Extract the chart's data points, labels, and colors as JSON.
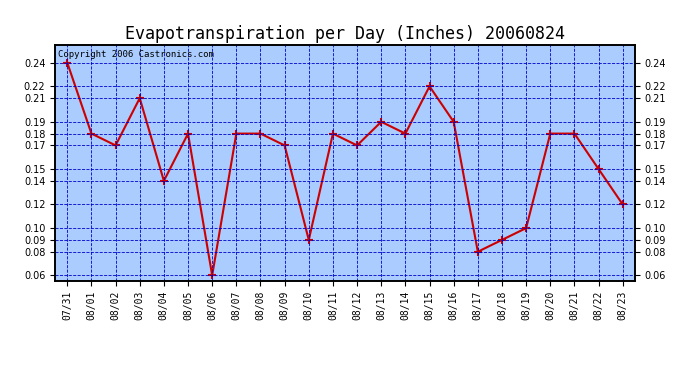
{
  "title": "Evapotranspiration per Day (Inches) 20060824",
  "copyright": "Copyright 2006 Castronics.com",
  "x_labels": [
    "07/31",
    "08/01",
    "08/02",
    "08/03",
    "08/04",
    "08/05",
    "08/06",
    "08/07",
    "08/08",
    "08/09",
    "08/10",
    "08/11",
    "08/12",
    "08/13",
    "08/14",
    "08/15",
    "08/16",
    "08/17",
    "08/18",
    "08/19",
    "08/20",
    "08/21",
    "08/22",
    "08/23"
  ],
  "y_values": [
    0.24,
    0.18,
    0.17,
    0.21,
    0.14,
    0.18,
    0.06,
    0.18,
    0.18,
    0.17,
    0.09,
    0.18,
    0.17,
    0.19,
    0.18,
    0.22,
    0.19,
    0.08,
    0.09,
    0.1,
    0.18,
    0.18,
    0.15,
    0.12
  ],
  "line_color": "#cc0000",
  "marker": "+",
  "marker_size": 6,
  "line_width": 1.5,
  "fig_bg_color": "#ffffff",
  "plot_bg_color": "#aaccff",
  "grid_color": "#0000cc",
  "grid_style": "--",
  "ylim": [
    0.055,
    0.255
  ],
  "yticks": [
    0.06,
    0.08,
    0.09,
    0.1,
    0.12,
    0.14,
    0.15,
    0.17,
    0.18,
    0.19,
    0.21,
    0.22,
    0.24
  ],
  "title_fontsize": 12,
  "copyright_fontsize": 6.5,
  "tick_fontsize": 7,
  "border_color": "#000000"
}
